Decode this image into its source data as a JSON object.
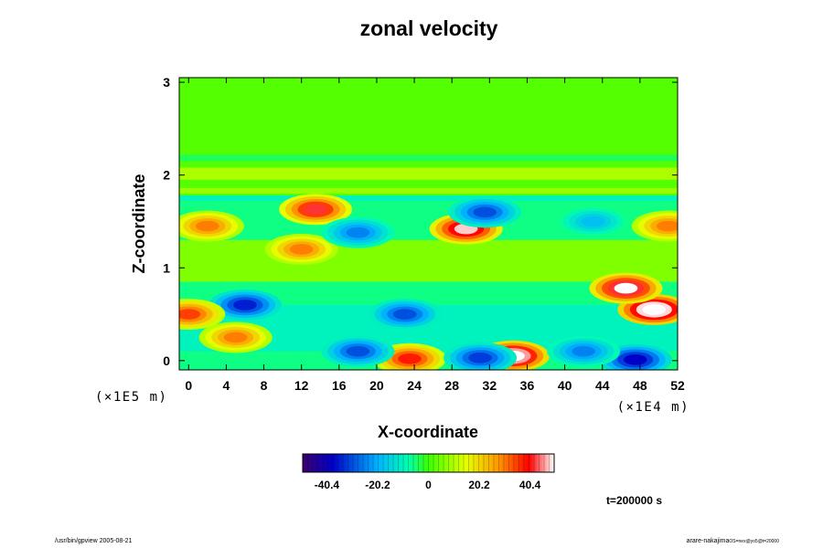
{
  "chart_data": {
    "type": "heatmap",
    "title": "zonal velocity",
    "xlabel": "X-coordinate",
    "ylabel": "Z-coordinate",
    "x_scale_label": "(×1E4 m)",
    "y_scale_label": "(×1E5 m)",
    "xlim": [
      -1,
      52
    ],
    "ylim": [
      -0.1,
      3.05
    ],
    "x_ticks": [
      0,
      4,
      8,
      12,
      16,
      20,
      24,
      28,
      32,
      36,
      40,
      44,
      48,
      52
    ],
    "y_ticks": [
      0,
      1,
      2,
      3
    ],
    "colorbar": {
      "range": [
        -50,
        50
      ],
      "tick_values": [
        -40.4,
        -20.2,
        0,
        20.2,
        40.4
      ],
      "tick_labels": [
        "-40.4",
        "-20.2",
        "0",
        "20.2",
        "40.4"
      ]
    },
    "features": [
      {
        "x": 34.5,
        "z": 0.05,
        "value": 55
      },
      {
        "x": 23.5,
        "z": 0.02,
        "value": 38
      },
      {
        "x": 47.5,
        "z": 0.01,
        "value": -38
      },
      {
        "x": 31,
        "z": 0.03,
        "value": -32
      },
      {
        "x": 18,
        "z": 0.1,
        "value": -30
      },
      {
        "x": 6,
        "z": 0.6,
        "value": -35
      },
      {
        "x": 23,
        "z": 0.5,
        "value": -30
      },
      {
        "x": 49.5,
        "z": 0.55,
        "value": 58
      },
      {
        "x": 46.5,
        "z": 0.78,
        "value": 50
      },
      {
        "x": 29.5,
        "z": 1.42,
        "value": 48
      },
      {
        "x": 13.5,
        "z": 1.63,
        "value": 42
      },
      {
        "x": 12,
        "z": 1.2,
        "value": 30
      },
      {
        "x": 31.5,
        "z": 1.6,
        "value": -30
      },
      {
        "x": 18,
        "z": 1.38,
        "value": -25
      },
      {
        "x": 0,
        "z": 0.5,
        "value": 35
      },
      {
        "x": 51,
        "z": 1.45,
        "value": 30
      },
      {
        "x": 2,
        "z": 1.45,
        "value": 30
      },
      {
        "x": 43,
        "z": 1.5,
        "value": -18
      },
      {
        "x": 5,
        "z": 0.25,
        "value": 30
      },
      {
        "x": 42,
        "z": 0.1,
        "value": -25
      }
    ]
  },
  "time_label": "t=200000 s",
  "footer": {
    "left": "/usr/bin/gpview 2005-08-21",
    "right_main": "arare-nakajima",
    "right_sub": "OS=nex@yo5@t=20000"
  }
}
